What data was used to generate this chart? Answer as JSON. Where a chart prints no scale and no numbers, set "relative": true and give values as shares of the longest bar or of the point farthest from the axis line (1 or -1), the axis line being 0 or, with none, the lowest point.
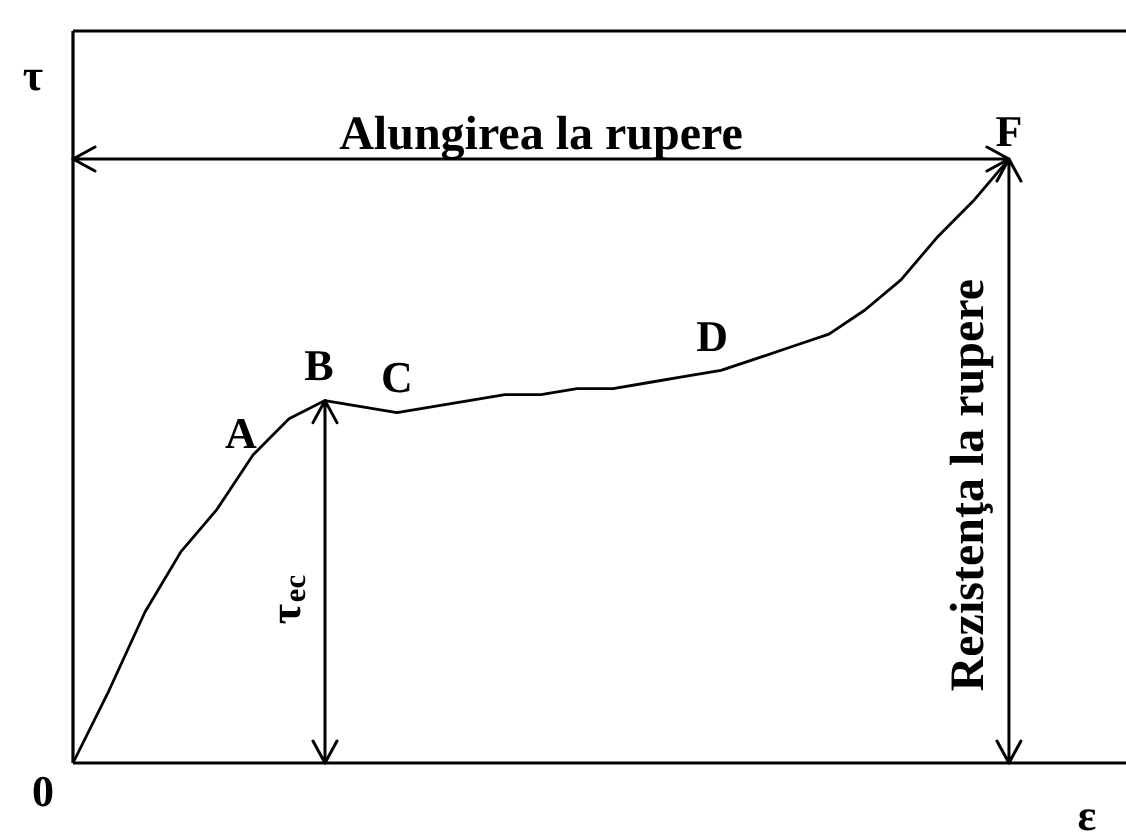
{
  "chart_data": {
    "type": "line",
    "relative": true,
    "xlabel": "ε",
    "ylabel": "τ",
    "categories": [
      null,
      null,
      null,
      null,
      null,
      null,
      null,
      null,
      null,
      null,
      null,
      null,
      null,
      null,
      null,
      null,
      null,
      null,
      null,
      null,
      null,
      null,
      null,
      null,
      null,
      null,
      null
    ],
    "series": [
      {
        "color": "#000000",
        "values": [
          0,
          0.12,
          0.25,
          0.35,
          0.42,
          0.51,
          0.57,
          0.6,
          0.59,
          0.58,
          0.59,
          0.6,
          0.61,
          0.61,
          0.62,
          0.62,
          0.63,
          0.64,
          0.65,
          0.67,
          0.69,
          0.71,
          0.75,
          0.8,
          0.87,
          0.93,
          1
        ]
      }
    ],
    "ref_lines": [
      {
        "axis": "y",
        "value": 1,
        "label": "Alungirea la rupere"
      }
    ],
    "annotations": [
      {
        "text": "A",
        "y": 0.51
      },
      {
        "text": "B",
        "y": 0.6
      },
      {
        "text": "C",
        "y": 0.58
      },
      {
        "text": "D",
        "y": 0.65
      },
      {
        "text": "F",
        "y": 1
      },
      "τ$_{ec}$",
      "Rezistenţa la rupere",
      "0"
    ]
  }
}
